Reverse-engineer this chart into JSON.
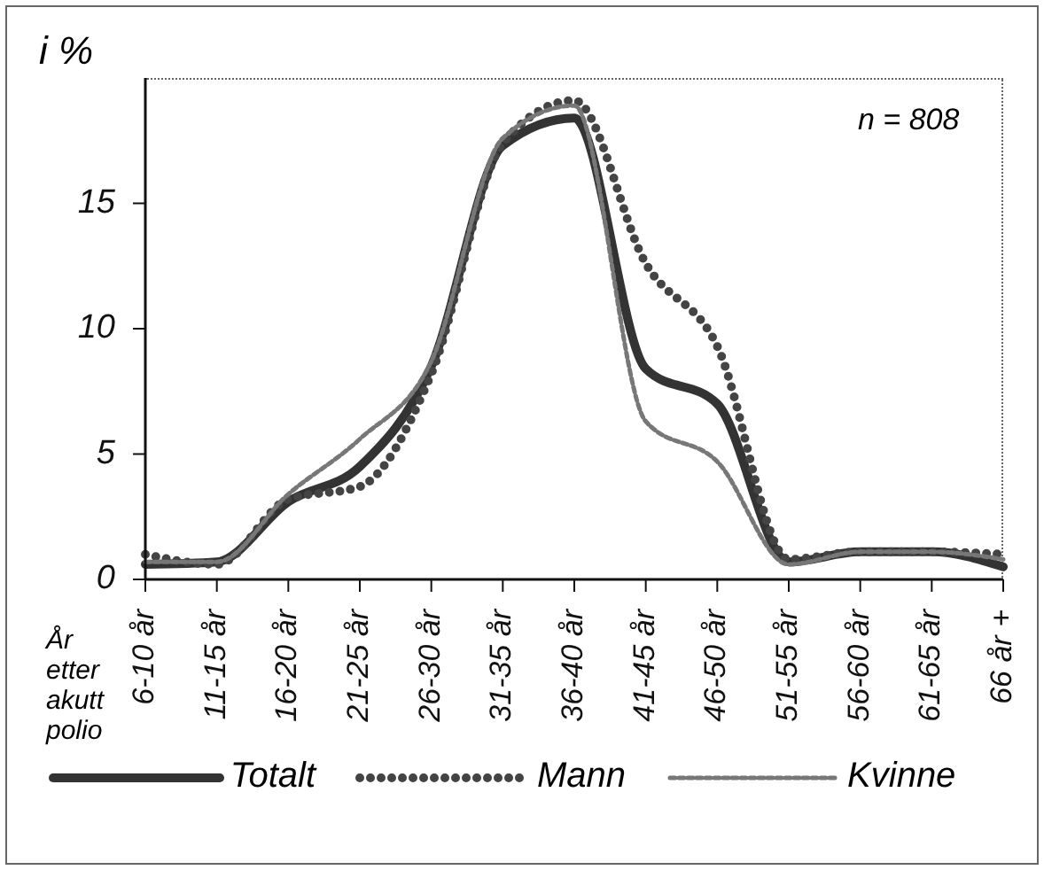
{
  "chart_data": {
    "type": "line",
    "ylabel": "i %",
    "xlabel": "År etter akutt polio",
    "annotations": [
      "n = 808"
    ],
    "categories": [
      "6-10 år",
      "11-15 år",
      "16-20 år",
      "21-25 år",
      "26-30 år",
      "31-35 år",
      "36-40 år",
      "41-45 år",
      "46-50 år",
      "51-55 år",
      "56-60 år",
      "61-65 år",
      "66 år +"
    ],
    "series": [
      {
        "name": "Totalt",
        "color": "#333333",
        "line_style": "solid",
        "values": [
          0.6,
          0.7,
          3.1,
          4.5,
          8.5,
          17.3,
          18.4,
          8.4,
          7.0,
          0.7,
          1.1,
          1.1,
          0.5
        ]
      },
      {
        "name": "Mann",
        "color": "#444444",
        "line_style": "dotted",
        "values": [
          1.0,
          0.6,
          3.2,
          3.7,
          8.2,
          17.4,
          19.1,
          12.6,
          9.3,
          0.8,
          1.1,
          1.1,
          1.0
        ]
      },
      {
        "name": "Kvinne",
        "color": "#777777",
        "line_style": "dashed",
        "values": [
          0.7,
          0.7,
          3.4,
          5.6,
          8.7,
          17.6,
          18.9,
          6.3,
          4.7,
          0.6,
          1.1,
          1.1,
          0.8
        ]
      }
    ],
    "ylim": [
      0,
      20
    ],
    "yticks": [
      0,
      5,
      10,
      15
    ],
    "legend": "bottom",
    "marker": "none"
  }
}
